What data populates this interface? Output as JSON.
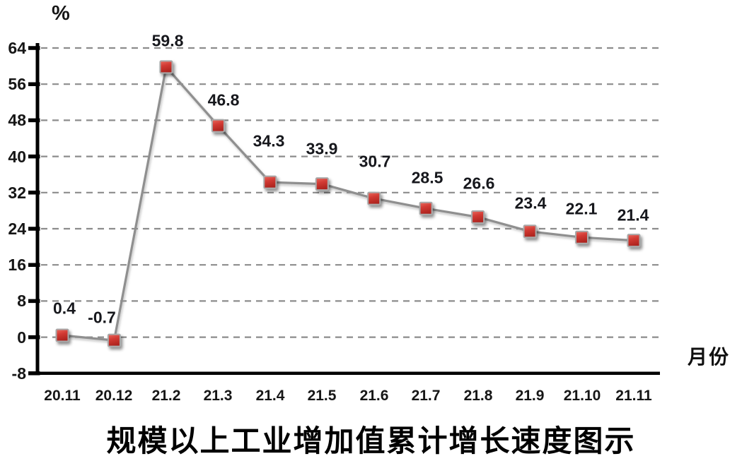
{
  "chart_data": {
    "type": "line",
    "title": "规模以上工业增加值累计增长速度图示",
    "ylabel": "%",
    "xlabel": "月份",
    "categories": [
      "20.11",
      "20.12",
      "21.2",
      "21.3",
      "21.4",
      "21.5",
      "21.6",
      "21.7",
      "21.8",
      "21.9",
      "21.10",
      "21.11"
    ],
    "values": [
      0.4,
      -0.7,
      59.8,
      46.8,
      34.3,
      33.9,
      30.7,
      28.5,
      26.6,
      23.4,
      22.1,
      21.4
    ],
    "data_labels": [
      "0.4",
      "-0.7",
      "59.8",
      "46.8",
      "34.3",
      "33.9",
      "30.7",
      "28.5",
      "26.6",
      "23.4",
      "22.1",
      "21.4"
    ],
    "y_ticks": [
      64,
      56,
      48,
      40,
      32,
      24,
      16,
      8,
      0,
      -8
    ],
    "ylim": [
      -8,
      64
    ],
    "grid": "horizontal-dashed",
    "legend_position": "none",
    "colors": {
      "marker_fill_dark": "#ae241f",
      "marker_fill_mid": "#d23a33",
      "marker_fill_light": "#ea6a5f",
      "marker_border": "#a9a9a9",
      "line": "#8f8f8f",
      "gridline": "#8c8c8c",
      "axis": "#000000",
      "text": "#161616"
    }
  }
}
